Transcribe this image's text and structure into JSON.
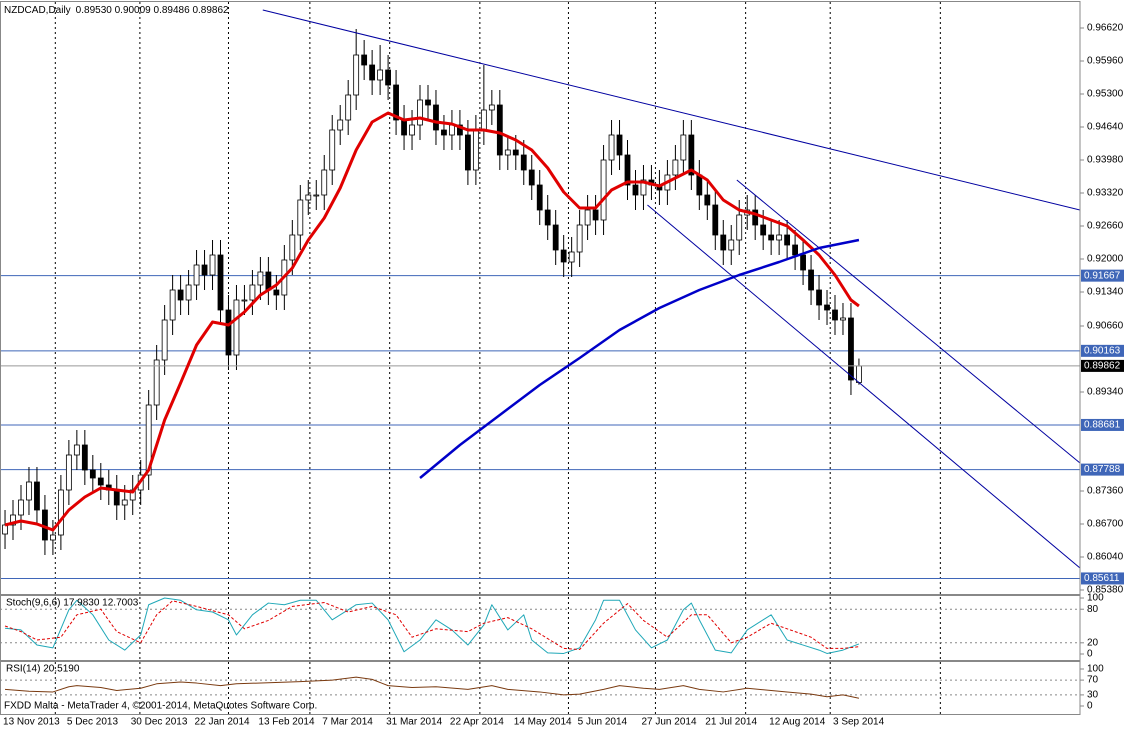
{
  "footer": "FXDD Malta - MetaTrader 4, ©2001-2014, MetaQuotes Software Corp.",
  "chart_data": [
    {
      "type": "candlestick",
      "title": "NZDCAD,Daily",
      "subtitle": "0.89530 0.90009 0.89486 0.89862",
      "categories": [
        "13 Nov 2013",
        null,
        null,
        null,
        null,
        null,
        null,
        null,
        "5 Dec 2013",
        null,
        null,
        null,
        null,
        null,
        null,
        null,
        "30 Dec 2013",
        null,
        null,
        null,
        null,
        null,
        null,
        null,
        "22 Jan 2014",
        null,
        null,
        null,
        null,
        null,
        null,
        null,
        "13 Feb 2014",
        null,
        null,
        null,
        null,
        null,
        null,
        null,
        "7 Mar 2014",
        null,
        null,
        null,
        null,
        null,
        null,
        null,
        "31 Mar 2014",
        null,
        null,
        null,
        null,
        null,
        null,
        null,
        "22 Apr 2014",
        null,
        null,
        null,
        null,
        null,
        null,
        null,
        "14 May 2014",
        null,
        null,
        null,
        null,
        null,
        null,
        null,
        "5 Jun 2014",
        null,
        null,
        null,
        null,
        null,
        null,
        null,
        "27 Jun 2014",
        null,
        null,
        null,
        null,
        null,
        null,
        null,
        "21 Jul 2014",
        null,
        null,
        null,
        null,
        null,
        null,
        null,
        "12 Aug 2014",
        null,
        null,
        null,
        null,
        null,
        null,
        null,
        "3 Sep 2014",
        null,
        null,
        null
      ],
      "open": [
        0.865,
        0.8668,
        0.8688,
        0.8718,
        0.8754,
        0.8698,
        0.8638,
        0.8648,
        0.8738,
        0.8808,
        0.8828,
        0.8778,
        0.8762,
        0.8748,
        0.8738,
        0.8708,
        0.8718,
        0.8738,
        0.8768,
        0.8908,
        0.8998,
        0.9078,
        0.9138,
        0.9118,
        0.9148,
        0.9188,
        0.9168,
        0.9208,
        0.9098,
        0.9008,
        0.9118,
        0.9118,
        0.9148,
        0.9174,
        0.9138,
        0.9128,
        0.9198,
        0.9248,
        0.9318,
        0.9328,
        0.9328,
        0.9378,
        0.9458,
        0.9478,
        0.9528,
        0.9608,
        0.9588,
        0.9558,
        0.9578,
        0.9548,
        0.9478,
        0.9448,
        0.9468,
        0.9518,
        0.9508,
        0.9458,
        0.9448,
        0.9468,
        0.9448,
        0.9378,
        0.9458,
        0.9498,
        0.9508,
        0.9408,
        0.9418,
        0.9408,
        0.9378,
        0.9348,
        0.9298,
        0.9268,
        0.9218,
        0.9194,
        0.9214,
        0.9268,
        0.9298,
        0.9278,
        0.9398,
        0.9448,
        0.9408,
        0.9348,
        0.9328,
        0.9358,
        0.9348,
        0.9338,
        0.9368,
        0.9398,
        0.9448,
        0.9368,
        0.9328,
        0.9308,
        0.9248,
        0.9218,
        0.9238,
        0.9288,
        0.9298,
        0.9268,
        0.9248,
        0.9238,
        0.9248,
        0.9228,
        0.9208,
        0.9178,
        0.9138,
        0.9108,
        0.9098,
        0.9078,
        0.9082,
        0.8953
      ],
      "high": [
        0.8698,
        0.8718,
        0.8748,
        0.8784,
        0.8784,
        0.8728,
        0.8678,
        0.8768,
        0.8838,
        0.8858,
        0.8858,
        0.8808,
        0.8792,
        0.8778,
        0.8768,
        0.8748,
        0.8768,
        0.8798,
        0.8938,
        0.9028,
        0.9108,
        0.9168,
        0.9168,
        0.9178,
        0.9218,
        0.9218,
        0.9238,
        0.9238,
        0.9128,
        0.9148,
        0.9148,
        0.9178,
        0.9204,
        0.9204,
        0.9168,
        0.9228,
        0.9278,
        0.9348,
        0.9358,
        0.9358,
        0.9408,
        0.9488,
        0.9508,
        0.9558,
        0.966,
        0.9638,
        0.9618,
        0.9628,
        0.9608,
        0.9578,
        0.9508,
        0.9498,
        0.9548,
        0.9548,
        0.9538,
        0.9488,
        0.9498,
        0.9498,
        0.9478,
        0.9488,
        0.9588,
        0.9538,
        0.9538,
        0.9448,
        0.9448,
        0.9438,
        0.9408,
        0.9378,
        0.9328,
        0.9298,
        0.9248,
        0.9244,
        0.9298,
        0.9328,
        0.9328,
        0.9428,
        0.9478,
        0.9478,
        0.9438,
        0.9378,
        0.9388,
        0.9388,
        0.9378,
        0.9398,
        0.9428,
        0.9478,
        0.9478,
        0.9398,
        0.9358,
        0.9338,
        0.9278,
        0.9268,
        0.9318,
        0.9328,
        0.9328,
        0.9298,
        0.9278,
        0.9278,
        0.9278,
        0.9258,
        0.9238,
        0.9208,
        0.9168,
        0.9138,
        0.9128,
        0.9112,
        0.9112,
        0.90009
      ],
      "low": [
        0.862,
        0.8638,
        0.8658,
        0.8688,
        0.8668,
        0.8608,
        0.8608,
        0.8618,
        0.8708,
        0.8778,
        0.8748,
        0.8732,
        0.8718,
        0.8708,
        0.8678,
        0.8678,
        0.8688,
        0.8708,
        0.8738,
        0.8878,
        0.8968,
        0.9048,
        0.9088,
        0.9088,
        0.9118,
        0.9138,
        0.9138,
        0.9068,
        0.8978,
        0.8978,
        0.9088,
        0.9088,
        0.9118,
        0.9108,
        0.9098,
        0.9098,
        0.9168,
        0.9218,
        0.9288,
        0.9298,
        0.9298,
        0.9348,
        0.9428,
        0.9448,
        0.9498,
        0.9558,
        0.9528,
        0.9528,
        0.9518,
        0.9448,
        0.9418,
        0.9418,
        0.9438,
        0.9478,
        0.9428,
        0.9418,
        0.9418,
        0.9418,
        0.9348,
        0.9348,
        0.9428,
        0.9468,
        0.9378,
        0.9378,
        0.9378,
        0.9348,
        0.9318,
        0.9268,
        0.9238,
        0.9188,
        0.9164,
        0.9164,
        0.9184,
        0.9238,
        0.9248,
        0.9248,
        0.9368,
        0.9378,
        0.9318,
        0.9298,
        0.9298,
        0.9318,
        0.9308,
        0.9308,
        0.9338,
        0.9368,
        0.9338,
        0.9298,
        0.9278,
        0.9218,
        0.9188,
        0.9188,
        0.9208,
        0.9258,
        0.9238,
        0.9218,
        0.9208,
        0.9208,
        0.9198,
        0.9178,
        0.9148,
        0.9108,
        0.9078,
        0.9068,
        0.9048,
        0.9048,
        0.8928,
        0.89486
      ],
      "close": [
        0.8668,
        0.8688,
        0.8718,
        0.8754,
        0.8698,
        0.8638,
        0.8648,
        0.8738,
        0.8808,
        0.8828,
        0.8778,
        0.8762,
        0.8748,
        0.8738,
        0.8708,
        0.8718,
        0.8738,
        0.8768,
        0.8908,
        0.8998,
        0.9078,
        0.9138,
        0.9118,
        0.9148,
        0.9188,
        0.9168,
        0.9208,
        0.9098,
        0.9008,
        0.9118,
        0.9118,
        0.9148,
        0.9174,
        0.9138,
        0.9128,
        0.9198,
        0.9248,
        0.9318,
        0.9328,
        0.9328,
        0.9378,
        0.9458,
        0.9478,
        0.9528,
        0.9608,
        0.9588,
        0.9558,
        0.9578,
        0.9548,
        0.9478,
        0.9448,
        0.9468,
        0.9518,
        0.9508,
        0.9458,
        0.9448,
        0.9468,
        0.9448,
        0.9378,
        0.9458,
        0.9498,
        0.9508,
        0.9408,
        0.9418,
        0.9408,
        0.9378,
        0.9348,
        0.9298,
        0.9268,
        0.9218,
        0.9194,
        0.9214,
        0.9268,
        0.9298,
        0.9278,
        0.9398,
        0.9448,
        0.9408,
        0.9348,
        0.9328,
        0.9358,
        0.9348,
        0.9338,
        0.9368,
        0.9398,
        0.9448,
        0.9368,
        0.9328,
        0.9308,
        0.9248,
        0.9218,
        0.9238,
        0.9288,
        0.9298,
        0.9268,
        0.9248,
        0.9238,
        0.9248,
        0.9228,
        0.9208,
        0.9178,
        0.9138,
        0.9108,
        0.9098,
        0.9078,
        0.9082,
        0.8958,
        0.89862
      ],
      "up_color": "#ffffff",
      "down_color": "#000000",
      "wick_color": "#000000",
      "xlim": [
        -0.63,
        134.7
      ],
      "xgrid": [
        6.3,
        16.9,
        28,
        38.2,
        48.2,
        59.5,
        70.6,
        81.5,
        92.8,
        103.4,
        117.2
      ],
      "ylim": [
        0.853,
        0.9714
      ],
      "yticks": [
        {
          "value": 0.9662,
          "label": "0.96620"
        },
        {
          "value": 0.9596,
          "label": "0.95960"
        },
        {
          "value": 0.953,
          "label": "0.95300"
        },
        {
          "value": 0.9464,
          "label": "0.94640"
        },
        {
          "value": 0.9398,
          "label": "0.93980"
        },
        {
          "value": 0.9332,
          "label": "0.93320"
        },
        {
          "value": 0.9266,
          "label": "0.92660"
        },
        {
          "value": 0.92,
          "label": "0.92000"
        },
        {
          "value": 0.9134,
          "label": "0.91340"
        },
        {
          "value": 0.9066,
          "label": "0.90660"
        },
        {
          "value": 0.8934,
          "label": "0.89340"
        },
        {
          "value": 0.8736,
          "label": "0.87360"
        },
        {
          "value": 0.867,
          "label": "0.86700"
        },
        {
          "value": 0.8604,
          "label": "0.86040"
        },
        {
          "value": 0.8538,
          "label": "0.85380"
        }
      ],
      "levels": [
        0.91667,
        0.90163,
        0.88681,
        0.87788,
        0.85611
      ],
      "level_color": "#3f66b8",
      "series": [
        {
          "color": "#e00000",
          "width": 3,
          "x": [
            0,
            2,
            4,
            6,
            8,
            10,
            12,
            14,
            16,
            18,
            20,
            22,
            24,
            26,
            28,
            30,
            32,
            34,
            36,
            38,
            40,
            42,
            44,
            46,
            48,
            50,
            52,
            54,
            56,
            58,
            60,
            62,
            64,
            66,
            68,
            70,
            72,
            74,
            76,
            78,
            80,
            82,
            84,
            86,
            88,
            90,
            92,
            94,
            96,
            98,
            100,
            102,
            104,
            106,
            107
          ],
          "values": [
            0.8668,
            0.8676,
            0.867,
            0.8658,
            0.8698,
            0.8724,
            0.8742,
            0.8738,
            0.8734,
            0.8778,
            0.8878,
            0.8952,
            0.9028,
            0.9074,
            0.9068,
            0.9094,
            0.9128,
            0.9148,
            0.9182,
            0.9238,
            0.9282,
            0.9342,
            0.9418,
            0.9474,
            0.9492,
            0.9478,
            0.9482,
            0.9474,
            0.947,
            0.9458,
            0.9458,
            0.9452,
            0.9438,
            0.9418,
            0.9382,
            0.9334,
            0.9302,
            0.9302,
            0.9338,
            0.9354,
            0.9354,
            0.9346,
            0.9362,
            0.9378,
            0.9358,
            0.9318,
            0.9298,
            0.929,
            0.9278,
            0.9266,
            0.9238,
            0.9208,
            0.9168,
            0.9118,
            0.9106
          ]
        },
        {
          "color": "#0000c8",
          "width": 2.5,
          "x": [
            52,
            57,
            62,
            67,
            72,
            77,
            82,
            87,
            92,
            97,
            102,
            107
          ],
          "values": [
            0.8762,
            0.8828,
            0.8888,
            0.8948,
            0.9002,
            0.9058,
            0.9102,
            0.9138,
            0.9168,
            0.9194,
            0.9222,
            0.9238
          ]
        }
      ],
      "trendlines": [
        {
          "x": [
            32.3,
            134.7
          ],
          "y": [
            0.9698,
            0.9298
          ]
        },
        {
          "x": [
            80.5,
            134.7
          ],
          "y": [
            0.9308,
            0.8582
          ]
        },
        {
          "x": [
            91.7,
            134.7
          ],
          "y": [
            0.9358,
            0.8792
          ]
        }
      ],
      "trendline_color": "#0000a0"
    },
    {
      "type": "line",
      "title": "Stoch(9,6,6) 17.9830 12.7003",
      "ylim": [
        -10.7,
        103.6
      ],
      "yticks": [
        100,
        80,
        20,
        0
      ],
      "levels": [
        80,
        20
      ],
      "series": [
        {
          "color": "#20a8b8",
          "x": [
            0,
            2,
            4,
            6,
            8,
            9,
            11,
            13,
            15,
            17,
            18,
            20,
            22,
            24,
            26,
            28,
            29,
            31,
            33,
            35,
            37,
            39,
            41,
            43,
            44,
            46,
            48,
            50,
            52,
            54,
            56,
            58,
            60,
            61,
            63,
            65,
            66,
            68,
            70,
            72,
            74,
            75,
            77,
            79,
            81,
            83,
            85,
            86,
            87,
            89,
            91,
            93,
            95,
            96,
            98,
            100,
            102,
            103,
            105,
            107
          ],
          "values": [
            46,
            43,
            16,
            11,
            79,
            96,
            70,
            25,
            7,
            34,
            88,
            100,
            96,
            79,
            75,
            61,
            34,
            70,
            91,
            88,
            96,
            96,
            61,
            79,
            88,
            91,
            61,
            4,
            25,
            61,
            43,
            16,
            52,
            88,
            43,
            70,
            25,
            2,
            1,
            11,
            61,
            96,
            96,
            43,
            11,
            25,
            79,
            91,
            61,
            7,
            2,
            43,
            61,
            70,
            25,
            16,
            7,
            1,
            7,
            18
          ]
        },
        {
          "color": "#e00000",
          "dash": true,
          "x": [
            0,
            2,
            4,
            7,
            9,
            12,
            14,
            17,
            19,
            21,
            24,
            28,
            30,
            33,
            36,
            40,
            43,
            46,
            49,
            51,
            54,
            58,
            60,
            63,
            66,
            70,
            72,
            75,
            78,
            80,
            83,
            86,
            88,
            91,
            93,
            96,
            98,
            101,
            103,
            105,
            107
          ],
          "values": [
            50,
            40,
            25,
            30,
            70,
            80,
            40,
            20,
            70,
            95,
            85,
            70,
            45,
            60,
            85,
            92,
            75,
            85,
            70,
            30,
            45,
            40,
            55,
            65,
            45,
            10,
            8,
            55,
            90,
            60,
            30,
            70,
            70,
            20,
            30,
            55,
            45,
            30,
            10,
            10,
            13
          ]
        }
      ]
    },
    {
      "type": "line",
      "title": "RSI(14) 20.5190",
      "ylim": [
        -21.6,
        118.9
      ],
      "yticks": [
        100,
        70,
        30,
        0
      ],
      "levels": [
        70,
        30
      ],
      "series": [
        {
          "color": "#7a3a10",
          "x": [
            0,
            3,
            6,
            8,
            9,
            12,
            14,
            17,
            19,
            22,
            24,
            27,
            29,
            33,
            37,
            41,
            44,
            46,
            48,
            51,
            54,
            58,
            61,
            63,
            67,
            70,
            72,
            75,
            77,
            80,
            82,
            85,
            87,
            90,
            93,
            96,
            98,
            101,
            103,
            105,
            107
          ],
          "values": [
            45,
            40,
            38,
            52,
            55,
            50,
            42,
            48,
            60,
            65,
            62,
            55,
            60,
            63,
            66,
            70,
            78,
            72,
            55,
            50,
            52,
            45,
            55,
            45,
            38,
            30,
            32,
            45,
            55,
            48,
            45,
            55,
            45,
            38,
            48,
            42,
            38,
            32,
            25,
            30,
            21
          ]
        }
      ]
    }
  ]
}
